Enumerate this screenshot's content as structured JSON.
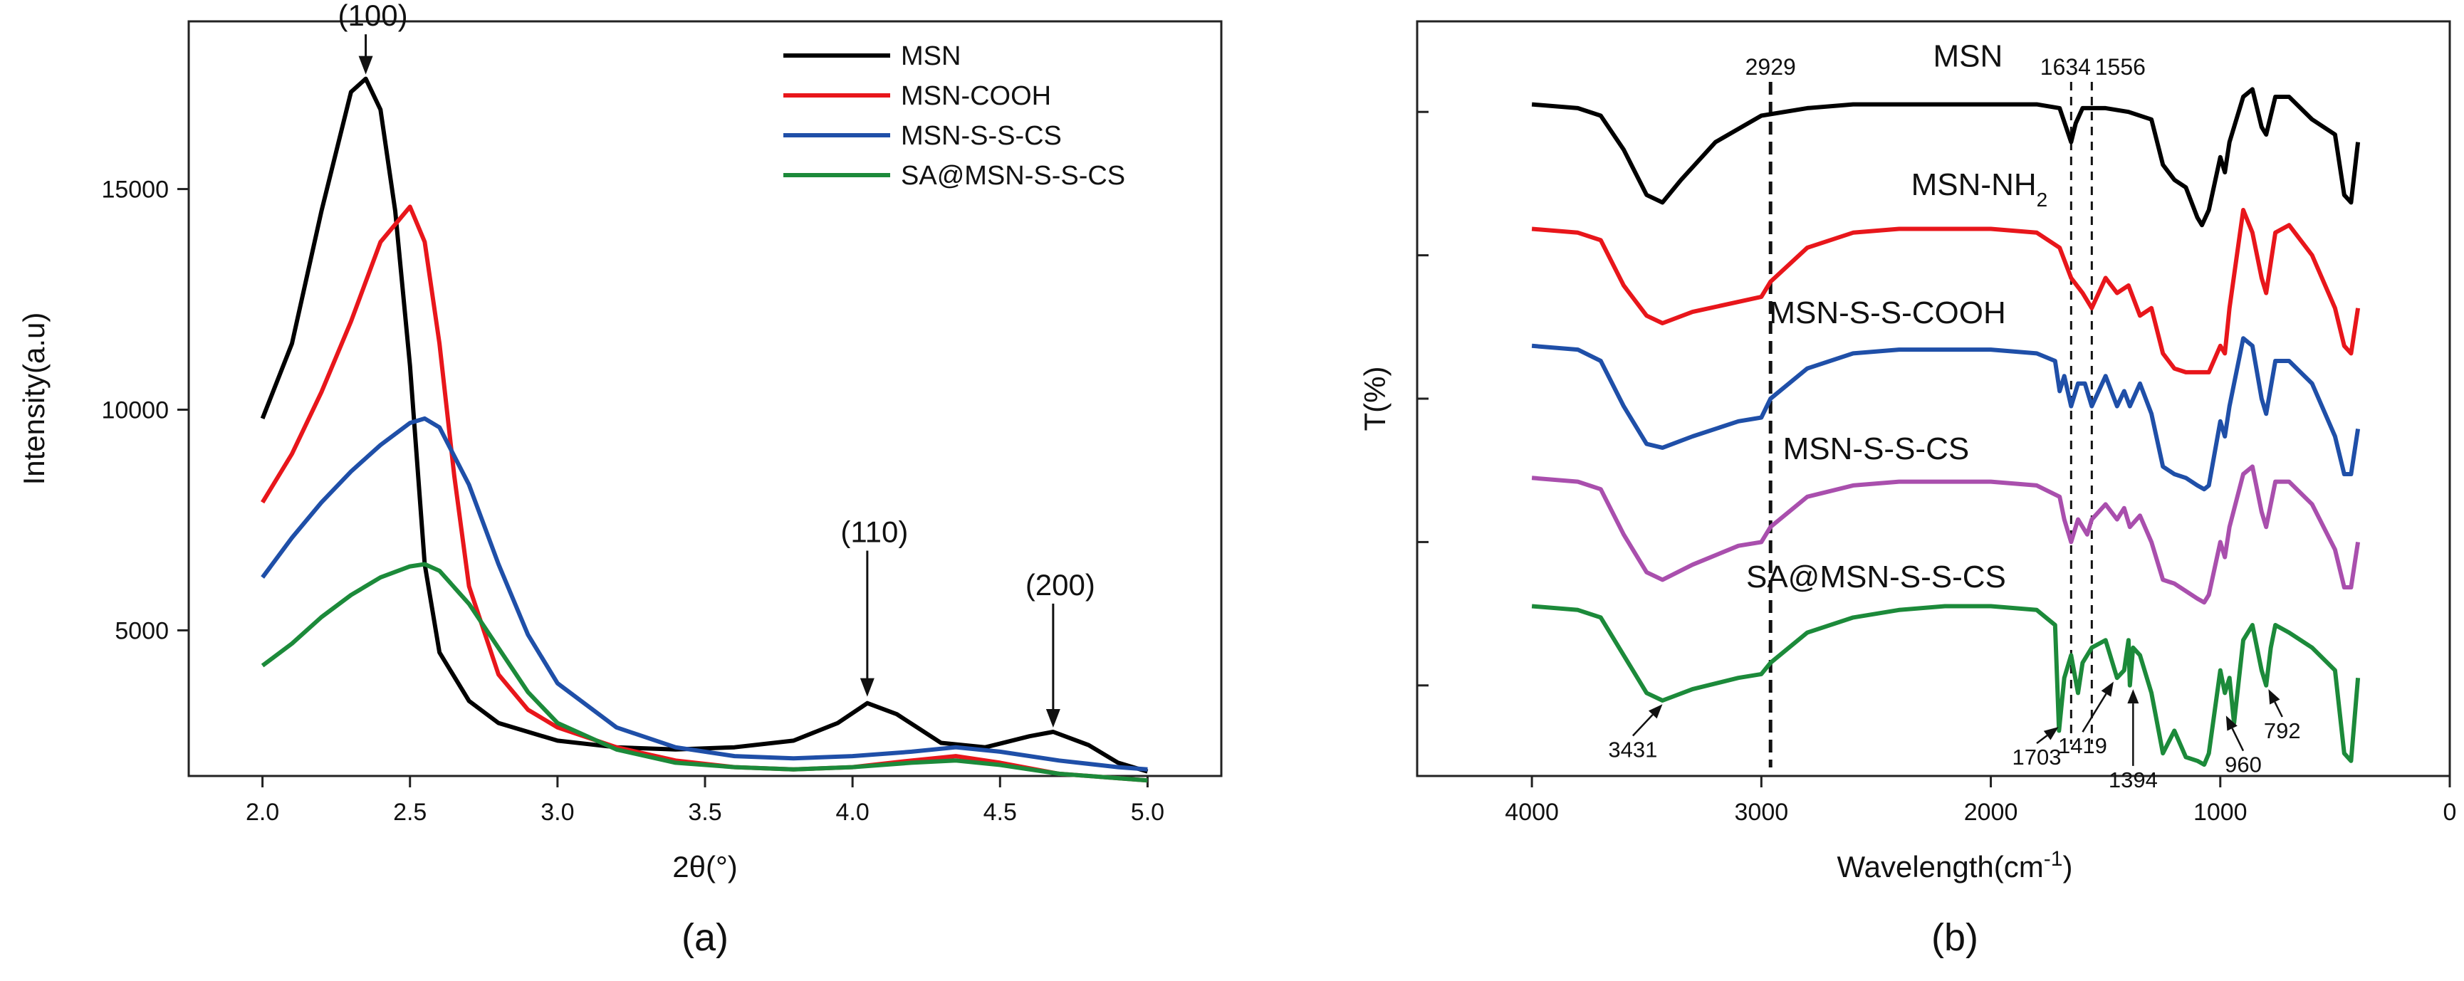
{
  "chart_data": [
    {
      "type": "line",
      "panel": "(a)",
      "xlabel": "2θ(°)",
      "ylabel": "Intensity(a.u)",
      "xlim": [
        1.75,
        5.25
      ],
      "ylim": [
        1700,
        18800
      ],
      "xticks": [
        "2.0",
        "2.5",
        "3.0",
        "3.5",
        "4.0",
        "4.5",
        "5.0"
      ],
      "yticks": [
        "5000",
        "10000",
        "15000"
      ],
      "legend_position": "top-right",
      "annotations": [
        {
          "label": "(100)",
          "x": 2.35,
          "y": 17500,
          "text_y": 18700
        },
        {
          "label": "(110)",
          "x": 4.05,
          "y": 3400,
          "text_y": 7000
        },
        {
          "label": "(200)",
          "x": 4.68,
          "y": 2700,
          "text_y": 5800
        }
      ],
      "series": [
        {
          "name": "MSN",
          "color": "#000000",
          "x": [
            2.0,
            2.1,
            2.2,
            2.3,
            2.35,
            2.4,
            2.45,
            2.5,
            2.55,
            2.6,
            2.7,
            2.8,
            3.0,
            3.2,
            3.4,
            3.6,
            3.8,
            3.95,
            4.05,
            4.15,
            4.3,
            4.45,
            4.6,
            4.68,
            4.8,
            4.9,
            5.0
          ],
          "y": [
            9800,
            11500,
            14500,
            17200,
            17500,
            16800,
            14500,
            11000,
            6500,
            4500,
            3400,
            2900,
            2500,
            2350,
            2300,
            2350,
            2500,
            2900,
            3350,
            3100,
            2450,
            2350,
            2600,
            2700,
            2400,
            2000,
            1800
          ]
        },
        {
          "name": "MSN-COOH",
          "color": "#e8161b",
          "x": [
            2.0,
            2.1,
            2.2,
            2.3,
            2.4,
            2.5,
            2.55,
            2.6,
            2.65,
            2.7,
            2.8,
            2.9,
            3.0,
            3.2,
            3.4,
            3.6,
            3.8,
            4.0,
            4.2,
            4.35,
            4.5,
            4.7,
            4.9,
            5.0
          ],
          "y": [
            7900,
            9000,
            10400,
            12000,
            13800,
            14600,
            13800,
            11500,
            8500,
            6000,
            4000,
            3200,
            2800,
            2350,
            2050,
            1900,
            1850,
            1900,
            2050,
            2150,
            2000,
            1750,
            1650,
            1600
          ]
        },
        {
          "name": "MSN-S-S-CS",
          "color": "#1f4fa8",
          "x": [
            2.0,
            2.1,
            2.2,
            2.3,
            2.4,
            2.5,
            2.55,
            2.6,
            2.7,
            2.8,
            2.9,
            3.0,
            3.2,
            3.4,
            3.6,
            3.8,
            4.0,
            4.2,
            4.35,
            4.5,
            4.7,
            4.9,
            5.0
          ],
          "y": [
            6200,
            7100,
            7900,
            8600,
            9200,
            9700,
            9800,
            9600,
            8300,
            6500,
            4900,
            3800,
            2800,
            2350,
            2150,
            2100,
            2150,
            2250,
            2350,
            2250,
            2050,
            1900,
            1850
          ]
        },
        {
          "name": "SA@MSN-S-S-CS",
          "color": "#1c8a3a",
          "x": [
            2.0,
            2.1,
            2.2,
            2.3,
            2.4,
            2.5,
            2.55,
            2.6,
            2.7,
            2.8,
            2.9,
            3.0,
            3.2,
            3.4,
            3.6,
            3.8,
            4.0,
            4.2,
            4.35,
            4.5,
            4.7,
            4.9,
            5.0
          ],
          "y": [
            4200,
            4700,
            5300,
            5800,
            6200,
            6450,
            6500,
            6350,
            5600,
            4600,
            3600,
            2900,
            2300,
            2000,
            1900,
            1850,
            1900,
            2000,
            2050,
            1950,
            1750,
            1650,
            1600
          ]
        }
      ]
    },
    {
      "type": "line",
      "panel": "(b)",
      "xlabel": "Wavelength(cm⁻¹)",
      "ylabel": "T(%)",
      "xlim": [
        4500,
        0
      ],
      "ylim": [
        0,
        100
      ],
      "xticks": [
        "4000",
        "3000",
        "2000",
        "1000",
        "0"
      ],
      "reference_lines": [
        {
          "label": "2929",
          "x": 2960
        },
        {
          "label": "1634",
          "x": 1650
        },
        {
          "label": "1556",
          "x": 1560
        }
      ],
      "peak_labels": [
        "3431",
        "1703",
        "1419",
        "1394",
        "960",
        "792"
      ],
      "series": [
        {
          "name": "MSN",
          "color": "#000000",
          "label_x": 2100,
          "label_y": 94,
          "x": [
            4000,
            3800,
            3700,
            3600,
            3500,
            3431,
            3350,
            3200,
            3000,
            2800,
            2600,
            2400,
            2200,
            2000,
            1800,
            1700,
            1650,
            1630,
            1600,
            1500,
            1400,
            1300,
            1250,
            1200,
            1150,
            1100,
            1080,
            1050,
            1000,
            980,
            960,
            900,
            860,
            820,
            800,
            760,
            700,
            600,
            500,
            460,
            430,
            400
          ],
          "y": [
            89,
            88.5,
            87.5,
            83,
            77,
            76,
            79,
            84,
            87.5,
            88.5,
            89,
            89,
            89,
            89,
            89,
            88.5,
            84,
            86.5,
            88.5,
            88.5,
            88,
            87,
            81,
            79,
            78,
            74,
            73,
            75,
            82,
            80,
            84,
            90,
            91,
            86,
            85,
            90,
            90,
            87,
            85,
            77,
            76,
            84
          ]
        },
        {
          "name": "MSN-NH₂",
          "color": "#e8161b",
          "label_x": 2050,
          "label_y": 77,
          "x": [
            4000,
            3800,
            3700,
            3600,
            3500,
            3431,
            3300,
            3000,
            2960,
            2800,
            2600,
            2400,
            2200,
            2000,
            1800,
            1700,
            1650,
            1600,
            1560,
            1500,
            1450,
            1400,
            1350,
            1300,
            1250,
            1200,
            1150,
            1100,
            1050,
            1000,
            980,
            960,
            900,
            860,
            820,
            800,
            760,
            700,
            600,
            500,
            460,
            430,
            400
          ],
          "y": [
            72.5,
            72,
            71,
            65,
            61,
            60,
            61.5,
            63.5,
            65.5,
            70,
            72,
            72.5,
            72.5,
            72.5,
            72,
            70,
            66,
            64,
            62,
            66,
            64,
            65,
            61,
            62,
            56,
            54,
            53.5,
            53.5,
            53.5,
            57,
            56,
            62,
            75,
            72,
            66,
            64,
            72,
            73,
            69,
            62,
            57,
            56,
            62
          ]
        },
        {
          "name": "MSN-S-S-COOH",
          "color": "#1f4fa8",
          "label_x": 2450,
          "label_y": 60,
          "x": [
            4000,
            3800,
            3700,
            3600,
            3500,
            3431,
            3300,
            3100,
            3000,
            2960,
            2800,
            2600,
            2400,
            2200,
            2000,
            1800,
            1720,
            1700,
            1680,
            1650,
            1620,
            1590,
            1560,
            1500,
            1450,
            1419,
            1394,
            1350,
            1300,
            1250,
            1200,
            1150,
            1100,
            1070,
            1050,
            1000,
            980,
            960,
            900,
            860,
            820,
            800,
            760,
            700,
            600,
            500,
            460,
            430,
            400
          ],
          "y": [
            57,
            56.5,
            55,
            49,
            44,
            43.5,
            45,
            47,
            47.5,
            50,
            54,
            56,
            56.5,
            56.5,
            56.5,
            56,
            55,
            51,
            53,
            49,
            52,
            52,
            49,
            53,
            49,
            51,
            49,
            52,
            48,
            41,
            40,
            39.5,
            38.5,
            38,
            38.5,
            47,
            45,
            49,
            58,
            57,
            50,
            48,
            55,
            55,
            52,
            45,
            40,
            40,
            46
          ]
        },
        {
          "name": "MSN-S-S-CS",
          "color": "#a94fad",
          "label_x": 2500,
          "label_y": 42,
          "x": [
            4000,
            3800,
            3700,
            3600,
            3500,
            3431,
            3300,
            3100,
            3000,
            2960,
            2800,
            2600,
            2400,
            2200,
            2000,
            1800,
            1700,
            1680,
            1650,
            1620,
            1580,
            1560,
            1500,
            1450,
            1419,
            1394,
            1350,
            1300,
            1250,
            1200,
            1150,
            1100,
            1070,
            1050,
            1000,
            980,
            960,
            900,
            860,
            820,
            800,
            760,
            700,
            600,
            500,
            460,
            430,
            400
          ],
          "y": [
            39.5,
            39,
            38,
            32,
            27,
            26,
            28,
            30.5,
            31,
            33,
            37,
            38.5,
            39,
            39,
            39,
            38.5,
            37,
            34,
            31,
            34,
            32,
            34,
            36,
            34,
            35.5,
            33,
            34.5,
            31,
            26,
            25.5,
            24.5,
            23.5,
            23,
            24,
            31,
            29,
            33,
            40,
            41,
            35,
            33,
            39,
            39,
            36,
            30,
            25,
            25,
            31
          ]
        },
        {
          "name": "SA@MSN-S-S-CS",
          "color": "#1c8a3a",
          "label_x": 2500,
          "label_y": 25,
          "x": [
            4000,
            3800,
            3700,
            3600,
            3500,
            3431,
            3300,
            3100,
            3000,
            2960,
            2800,
            2600,
            2400,
            2200,
            2000,
            1800,
            1720,
            1703,
            1680,
            1650,
            1620,
            1600,
            1560,
            1500,
            1450,
            1419,
            1400,
            1394,
            1380,
            1350,
            1300,
            1250,
            1200,
            1150,
            1100,
            1070,
            1050,
            1000,
            980,
            960,
            940,
            900,
            860,
            820,
            800,
            780,
            760,
            700,
            600,
            500,
            460,
            430,
            400
          ],
          "y": [
            22.5,
            22,
            21,
            16,
            11,
            10,
            11.5,
            13,
            13.5,
            15,
            19,
            21,
            22,
            22.5,
            22.5,
            22,
            20,
            6,
            13,
            16,
            11,
            15,
            17,
            18,
            13,
            14,
            18,
            12,
            17,
            16,
            11,
            3,
            6,
            2.5,
            2,
            1.5,
            3,
            14,
            11,
            13,
            7,
            18,
            20,
            14,
            12,
            17,
            20,
            19,
            17,
            14,
            3,
            2,
            13
          ]
        }
      ]
    }
  ]
}
